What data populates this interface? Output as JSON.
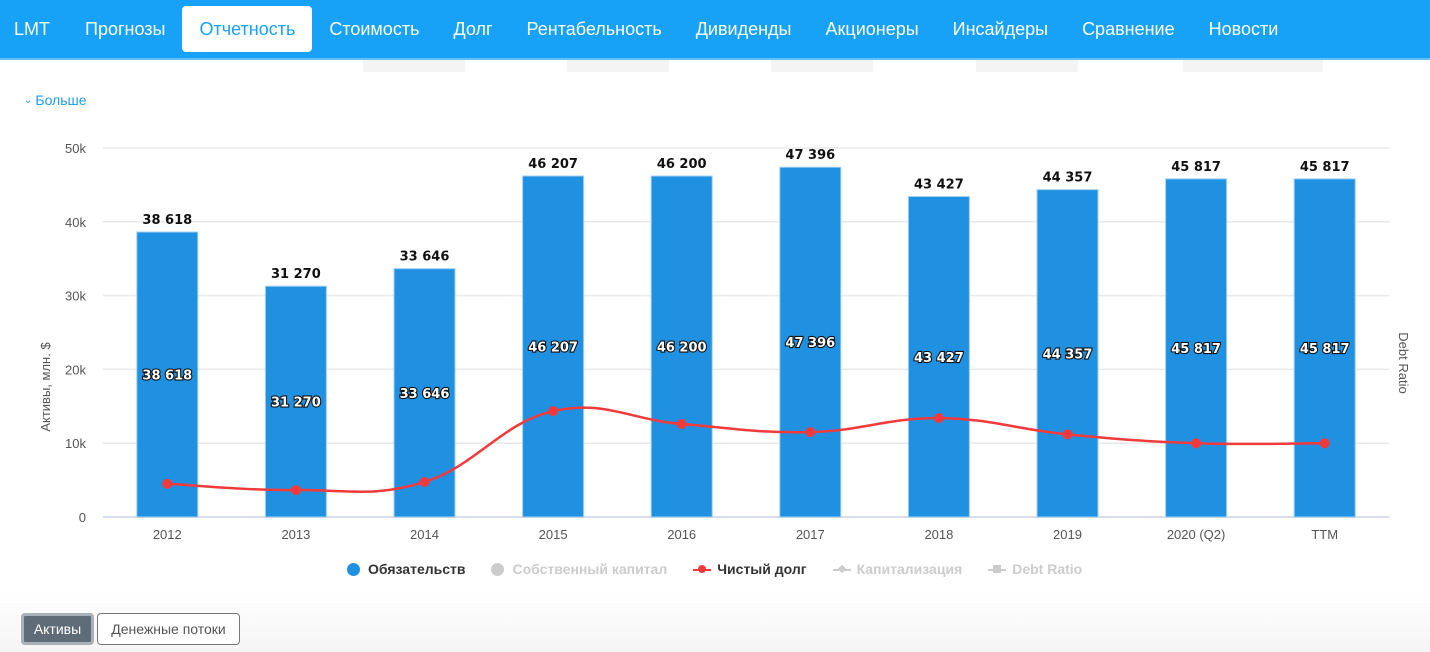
{
  "nav": {
    "items": [
      {
        "label": "LMT",
        "active": false
      },
      {
        "label": "Прогнозы",
        "active": false
      },
      {
        "label": "Отчетность",
        "active": true
      },
      {
        "label": "Стоимость",
        "active": false
      },
      {
        "label": "Долг",
        "active": false
      },
      {
        "label": "Рентабельность",
        "active": false
      },
      {
        "label": "Дивиденды",
        "active": false
      },
      {
        "label": "Акционеры",
        "active": false
      },
      {
        "label": "Инсайдеры",
        "active": false
      },
      {
        "label": "Сравнение",
        "active": false
      },
      {
        "label": "Новости",
        "active": false
      }
    ]
  },
  "more_link": {
    "icon": "chevron-down-icon",
    "label": "Больше"
  },
  "colors": {
    "accent": "#17a2f7",
    "bar": "#2091e0",
    "net_debt": "#f23a3c",
    "legend_hidden": "#cccccc"
  },
  "chart_data": {
    "type": "bar",
    "title": "",
    "xlabel": "",
    "ylabel": "Активы, млн. $",
    "y2label": "Debt Ratio",
    "ylim": [
      0,
      50000
    ],
    "yticks": [
      0,
      10000,
      20000,
      30000,
      40000,
      50000
    ],
    "ytick_labels": [
      "0",
      "10k",
      "20k",
      "30k",
      "40k",
      "50k"
    ],
    "grid": true,
    "legend_position": "bottom-center",
    "categories": [
      "2012",
      "2013",
      "2014",
      "2015",
      "2016",
      "2017",
      "2018",
      "2019",
      "2020 (Q2)",
      "TTM"
    ],
    "series": [
      {
        "name": "Обязательств",
        "kind": "bar",
        "visible": true,
        "values": [
          38618,
          31270,
          33646,
          46207,
          46200,
          47396,
          43427,
          44357,
          45817,
          45817
        ],
        "labels": [
          "38 618",
          "31 270",
          "33 646",
          "46 207",
          "46 200",
          "47 396",
          "43 427",
          "44 357",
          "45 817",
          "45 817"
        ]
      },
      {
        "name": "Собственный капитал",
        "kind": "bar",
        "visible": false,
        "values": []
      },
      {
        "name": "Чистый долг",
        "kind": "line",
        "visible": true,
        "values": [
          4500,
          3650,
          4750,
          14350,
          12600,
          11500,
          13400,
          11200,
          10000,
          10000
        ]
      },
      {
        "name": "Капитализация",
        "kind": "line",
        "visible": false,
        "values": []
      },
      {
        "name": "Debt Ratio",
        "kind": "line",
        "visible": false,
        "values": []
      }
    ]
  },
  "legend": [
    {
      "label": "Обязательств",
      "marker": "circle",
      "color": "#2091e0",
      "state": "shown"
    },
    {
      "label": "Собственный капитал",
      "marker": "circle",
      "color": "#cccccc",
      "state": "hidden"
    },
    {
      "label": "Чистый долг",
      "marker": "line-circle",
      "color": "#f23a3c",
      "state": "shown"
    },
    {
      "label": "Капитализация",
      "marker": "line-diamond",
      "color": "#cccccc",
      "state": "hidden"
    },
    {
      "label": "Debt Ratio",
      "marker": "line-square",
      "color": "#cccccc",
      "state": "hidden"
    }
  ],
  "buttons": {
    "assets": "Активы",
    "cashflow": "Денежные потоки"
  }
}
